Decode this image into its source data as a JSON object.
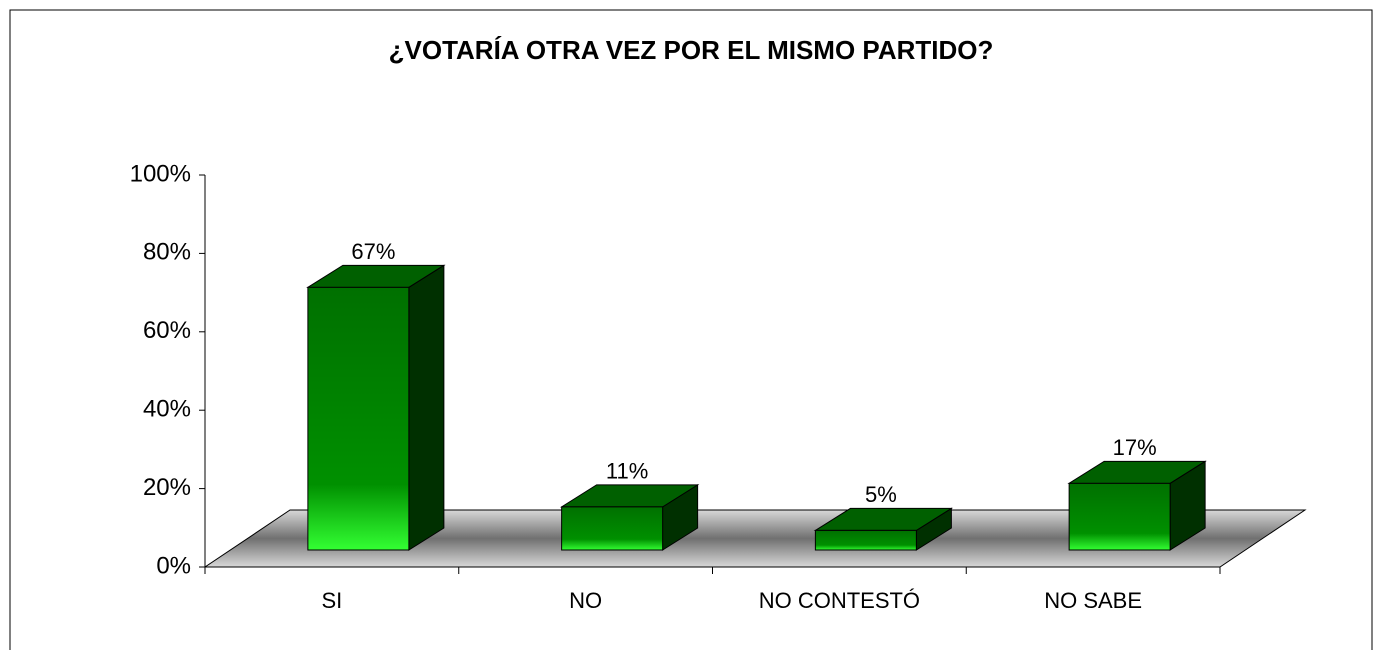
{
  "chart_data": {
    "type": "bar3d",
    "title": "¿VOTARÍA OTRA VEZ POR EL MISMO PARTIDO?",
    "categories": [
      "SI",
      "NO",
      "NO CONTESTÓ",
      "NO SABE"
    ],
    "values": [
      67,
      11,
      5,
      17
    ],
    "value_labels": [
      "67%",
      "11%",
      "5%",
      "17%"
    ],
    "color": "#00a000",
    "ylim": [
      0,
      100
    ],
    "yticks": [
      {
        "value": 0,
        "label": "0%"
      },
      {
        "value": 20,
        "label": "20%"
      },
      {
        "value": 40,
        "label": "40%"
      },
      {
        "value": 60,
        "label": "60%"
      },
      {
        "value": 80,
        "label": "80%"
      },
      {
        "value": 100,
        "label": "100%"
      }
    ]
  }
}
